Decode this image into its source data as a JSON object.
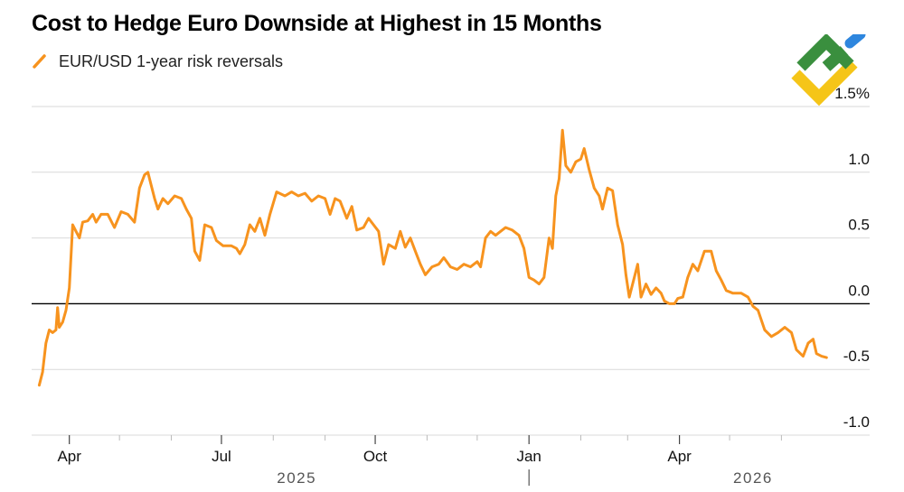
{
  "title": "Cost to Hedge Euro Downside at Highest in 15 Months",
  "colors": {
    "series": "#f7931e",
    "grid": "#d9d9d9",
    "zero": "#000000",
    "text": "#111111"
  },
  "logo": {
    "icon": "watermark-logo-icon"
  },
  "chart_data": {
    "type": "line",
    "title": "Cost to Hedge Euro Downside at Highest in 15 Months",
    "xlabel": "",
    "ylabel": "",
    "ylim": [
      -1.0,
      1.5
    ],
    "yticks": [
      -1.0,
      -0.5,
      0.0,
      0.5,
      1.0,
      1.5
    ],
    "ytick_labels": [
      "-1.0",
      "-0.5",
      "0.0",
      "0.5",
      "1.0",
      "1.5%"
    ],
    "xlim": [
      "2025-03-10",
      "2026-07-20"
    ],
    "xtick_labels": [
      {
        "label": "Apr",
        "date": "2025-04-01"
      },
      {
        "label": "Jul",
        "date": "2025-07-01"
      },
      {
        "label": "Oct",
        "date": "2025-10-01"
      },
      {
        "label": "Jan",
        "date": "2026-01-01"
      },
      {
        "label": "Apr",
        "date": "2026-04-01"
      }
    ],
    "minor_tick_dates": [
      "2025-03-01",
      "2025-05-01",
      "2025-06-01",
      "2025-08-01",
      "2025-09-01",
      "2025-11-01",
      "2025-12-01",
      "2026-02-01",
      "2026-03-01",
      "2026-05-01",
      "2026-06-01"
    ],
    "year_labels": [
      {
        "label": "2025",
        "date": "2025-08-15"
      },
      {
        "label": "2026",
        "date": "2026-05-15"
      }
    ],
    "grid": true,
    "legend": "top-left",
    "series": [
      {
        "name": "EUR/USD 1-year risk reversals",
        "points": [
          [
            "2025-03-14",
            -0.62
          ],
          [
            "2025-03-16",
            -0.52
          ],
          [
            "2025-03-18",
            -0.3
          ],
          [
            "2025-03-20",
            -0.2
          ],
          [
            "2025-03-22",
            -0.22
          ],
          [
            "2025-03-24",
            -0.2
          ],
          [
            "2025-03-25",
            -0.03
          ],
          [
            "2025-03-26",
            -0.18
          ],
          [
            "2025-03-28",
            -0.14
          ],
          [
            "2025-03-30",
            -0.05
          ],
          [
            "2025-04-01",
            0.12
          ],
          [
            "2025-04-03",
            0.6
          ],
          [
            "2025-04-05",
            0.55
          ],
          [
            "2025-04-07",
            0.5
          ],
          [
            "2025-04-09",
            0.62
          ],
          [
            "2025-04-12",
            0.63
          ],
          [
            "2025-04-15",
            0.68
          ],
          [
            "2025-04-17",
            0.62
          ],
          [
            "2025-04-20",
            0.68
          ],
          [
            "2025-04-24",
            0.68
          ],
          [
            "2025-04-28",
            0.58
          ],
          [
            "2025-05-02",
            0.7
          ],
          [
            "2025-05-06",
            0.68
          ],
          [
            "2025-05-10",
            0.62
          ],
          [
            "2025-05-13",
            0.88
          ],
          [
            "2025-05-16",
            0.98
          ],
          [
            "2025-05-18",
            1.0
          ],
          [
            "2025-05-20",
            0.9
          ],
          [
            "2025-05-22",
            0.8
          ],
          [
            "2025-05-24",
            0.72
          ],
          [
            "2025-05-27",
            0.8
          ],
          [
            "2025-05-30",
            0.76
          ],
          [
            "2025-06-03",
            0.82
          ],
          [
            "2025-06-07",
            0.8
          ],
          [
            "2025-06-10",
            0.72
          ],
          [
            "2025-06-13",
            0.65
          ],
          [
            "2025-06-15",
            0.4
          ],
          [
            "2025-06-18",
            0.33
          ],
          [
            "2025-06-21",
            0.6
          ],
          [
            "2025-06-25",
            0.58
          ],
          [
            "2025-06-28",
            0.48
          ],
          [
            "2025-07-02",
            0.44
          ],
          [
            "2025-07-07",
            0.44
          ],
          [
            "2025-07-10",
            0.42
          ],
          [
            "2025-07-12",
            0.38
          ],
          [
            "2025-07-15",
            0.45
          ],
          [
            "2025-07-18",
            0.6
          ],
          [
            "2025-07-21",
            0.55
          ],
          [
            "2025-07-24",
            0.65
          ],
          [
            "2025-07-27",
            0.52
          ],
          [
            "2025-07-30",
            0.68
          ],
          [
            "2025-08-03",
            0.85
          ],
          [
            "2025-08-08",
            0.82
          ],
          [
            "2025-08-12",
            0.85
          ],
          [
            "2025-08-16",
            0.82
          ],
          [
            "2025-08-20",
            0.84
          ],
          [
            "2025-08-24",
            0.78
          ],
          [
            "2025-08-28",
            0.82
          ],
          [
            "2025-09-01",
            0.8
          ],
          [
            "2025-09-04",
            0.68
          ],
          [
            "2025-09-07",
            0.8
          ],
          [
            "2025-09-10",
            0.78
          ],
          [
            "2025-09-14",
            0.65
          ],
          [
            "2025-09-17",
            0.74
          ],
          [
            "2025-09-20",
            0.56
          ],
          [
            "2025-09-24",
            0.58
          ],
          [
            "2025-09-27",
            0.65
          ],
          [
            "2025-09-30",
            0.6
          ],
          [
            "2025-10-03",
            0.55
          ],
          [
            "2025-10-06",
            0.3
          ],
          [
            "2025-10-09",
            0.45
          ],
          [
            "2025-10-13",
            0.42
          ],
          [
            "2025-10-16",
            0.55
          ],
          [
            "2025-10-19",
            0.43
          ],
          [
            "2025-10-22",
            0.5
          ],
          [
            "2025-10-25",
            0.4
          ],
          [
            "2025-10-28",
            0.3
          ],
          [
            "2025-10-31",
            0.22
          ],
          [
            "2025-11-04",
            0.28
          ],
          [
            "2025-11-08",
            0.3
          ],
          [
            "2025-11-11",
            0.35
          ],
          [
            "2025-11-15",
            0.28
          ],
          [
            "2025-11-19",
            0.26
          ],
          [
            "2025-11-23",
            0.3
          ],
          [
            "2025-11-27",
            0.28
          ],
          [
            "2025-12-01",
            0.32
          ],
          [
            "2025-12-03",
            0.28
          ],
          [
            "2025-12-06",
            0.5
          ],
          [
            "2025-12-09",
            0.55
          ],
          [
            "2025-12-12",
            0.52
          ],
          [
            "2025-12-15",
            0.55
          ],
          [
            "2025-12-18",
            0.58
          ],
          [
            "2025-12-22",
            0.56
          ],
          [
            "2025-12-26",
            0.52
          ],
          [
            "2025-12-29",
            0.42
          ],
          [
            "2026-01-01",
            0.2
          ],
          [
            "2026-01-04",
            0.18
          ],
          [
            "2026-01-07",
            0.15
          ],
          [
            "2026-01-10",
            0.2
          ],
          [
            "2026-01-13",
            0.5
          ],
          [
            "2026-01-15",
            0.42
          ],
          [
            "2026-01-17",
            0.82
          ],
          [
            "2026-01-19",
            0.95
          ],
          [
            "2026-01-21",
            1.32
          ],
          [
            "2026-01-23",
            1.05
          ],
          [
            "2026-01-26",
            1.0
          ],
          [
            "2026-01-29",
            1.08
          ],
          [
            "2026-02-01",
            1.1
          ],
          [
            "2026-02-03",
            1.18
          ],
          [
            "2026-02-06",
            1.02
          ],
          [
            "2026-02-09",
            0.88
          ],
          [
            "2026-02-12",
            0.82
          ],
          [
            "2026-02-14",
            0.72
          ],
          [
            "2026-02-17",
            0.88
          ],
          [
            "2026-02-20",
            0.86
          ],
          [
            "2026-02-23",
            0.6
          ],
          [
            "2026-02-26",
            0.45
          ],
          [
            "2026-02-28",
            0.22
          ],
          [
            "2026-03-02",
            0.05
          ],
          [
            "2026-03-04",
            0.15
          ],
          [
            "2026-03-07",
            0.3
          ],
          [
            "2026-03-09",
            0.05
          ],
          [
            "2026-03-12",
            0.15
          ],
          [
            "2026-03-15",
            0.07
          ],
          [
            "2026-03-18",
            0.12
          ],
          [
            "2026-03-21",
            0.08
          ],
          [
            "2026-03-23",
            0.02
          ],
          [
            "2026-03-26",
            0.0
          ],
          [
            "2026-03-29",
            0.0
          ],
          [
            "2026-03-31",
            0.04
          ],
          [
            "2026-04-03",
            0.05
          ],
          [
            "2026-04-06",
            0.2
          ],
          [
            "2026-04-09",
            0.3
          ],
          [
            "2026-04-12",
            0.25
          ],
          [
            "2026-04-16",
            0.4
          ],
          [
            "2026-04-20",
            0.4
          ],
          [
            "2026-04-23",
            0.25
          ],
          [
            "2026-04-26",
            0.18
          ],
          [
            "2026-04-29",
            0.1
          ],
          [
            "2026-05-03",
            0.08
          ],
          [
            "2026-05-08",
            0.08
          ],
          [
            "2026-05-12",
            0.05
          ],
          [
            "2026-05-15",
            -0.02
          ],
          [
            "2026-05-18",
            -0.05
          ],
          [
            "2026-05-22",
            -0.2
          ],
          [
            "2026-05-26",
            -0.25
          ],
          [
            "2026-05-30",
            -0.22
          ],
          [
            "2026-06-03",
            -0.18
          ],
          [
            "2026-06-07",
            -0.22
          ],
          [
            "2026-06-10",
            -0.35
          ],
          [
            "2026-06-14",
            -0.4
          ],
          [
            "2026-06-17",
            -0.3
          ],
          [
            "2026-06-20",
            -0.27
          ],
          [
            "2026-06-22",
            -0.38
          ],
          [
            "2026-06-25",
            -0.4
          ],
          [
            "2026-06-28",
            -0.41
          ]
        ]
      }
    ]
  }
}
